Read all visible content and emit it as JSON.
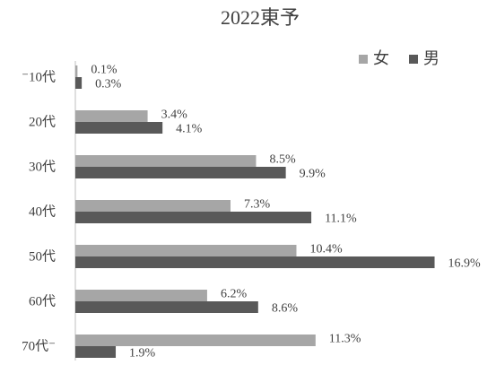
{
  "chart_data": {
    "type": "bar",
    "orientation": "horizontal",
    "title": "2022東予",
    "categories": [
      "⁻10代",
      "20代",
      "30代",
      "40代",
      "50代",
      "60代",
      "70代⁻"
    ],
    "series": [
      {
        "name": "女",
        "color": "#a6a6a6",
        "values": [
          0.1,
          3.4,
          8.5,
          7.3,
          10.4,
          6.2,
          11.3
        ],
        "value_labels": [
          "0.1%",
          "3.4%",
          "8.5%",
          "7.3%",
          "10.4%",
          "6.2%",
          "11.3%"
        ]
      },
      {
        "name": "男",
        "color": "#595959",
        "values": [
          0.3,
          4.1,
          9.9,
          11.1,
          16.9,
          8.6,
          1.9
        ],
        "value_labels": [
          "0.3%",
          "4.1%",
          "9.9%",
          "11.1%",
          "16.9%",
          "8.6%",
          "1.9%"
        ]
      }
    ],
    "legend": "top-right"
  }
}
